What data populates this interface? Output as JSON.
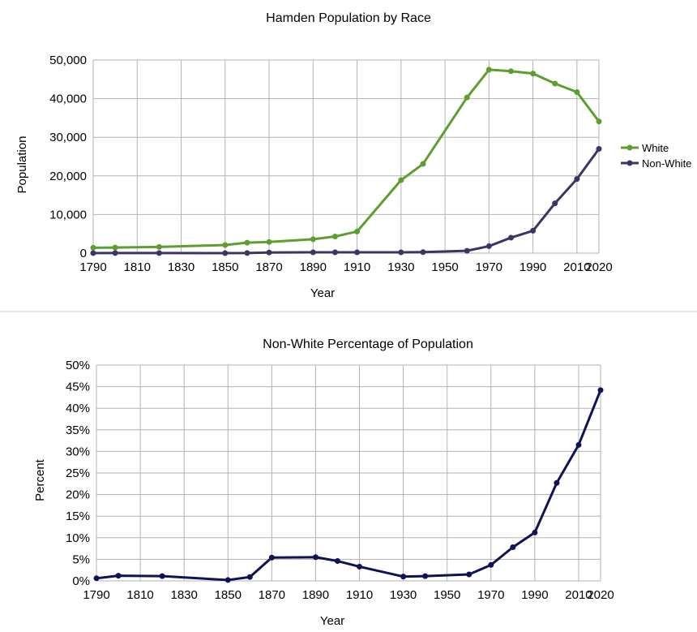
{
  "chart_data": [
    {
      "type": "line",
      "title": "Hamden Population by Race",
      "xlabel": "Year",
      "ylabel": "Population",
      "xlim": [
        1790,
        2020
      ],
      "ylim": [
        0,
        50000
      ],
      "xticks": [
        "1790",
        "1810",
        "1830",
        "1850",
        "1870",
        "1890",
        "1910",
        "1930",
        "1950",
        "1970",
        "1990",
        "2010",
        "2020"
      ],
      "xtick_values": [
        1790,
        1810,
        1830,
        1850,
        1870,
        1890,
        1910,
        1930,
        1950,
        1970,
        1990,
        2010,
        2020
      ],
      "yticks": [
        "0",
        "10,000",
        "20,000",
        "30,000",
        "40,000",
        "50,000"
      ],
      "ytick_values": [
        0,
        10000,
        20000,
        30000,
        40000,
        50000
      ],
      "grid": true,
      "legend_position": "right",
      "series": [
        {
          "name": "White",
          "color": "#5d9e2f",
          "x": [
            1790,
            1800,
            1820,
            1850,
            1860,
            1870,
            1890,
            1900,
            1910,
            1930,
            1940,
            1960,
            1970,
            1980,
            1990,
            2000,
            2010,
            2020
          ],
          "values": [
            1400,
            1450,
            1600,
            2100,
            2700,
            2900,
            3600,
            4300,
            5600,
            18900,
            23100,
            40300,
            47500,
            47100,
            46500,
            43900,
            41700,
            34100
          ]
        },
        {
          "name": "Non-White",
          "color": "#3b3565",
          "x": [
            1790,
            1800,
            1820,
            1850,
            1860,
            1870,
            1890,
            1900,
            1910,
            1930,
            1940,
            1960,
            1970,
            1980,
            1990,
            2000,
            2010,
            2020
          ],
          "values": [
            10,
            20,
            20,
            5,
            20,
            170,
            200,
            210,
            200,
            200,
            250,
            600,
            1800,
            4000,
            5800,
            12900,
            19200,
            27000
          ]
        }
      ]
    },
    {
      "type": "line",
      "title": "Non-White Percentage of Population",
      "xlabel": "Year",
      "ylabel": "Percent",
      "xlim": [
        1790,
        2020
      ],
      "ylim": [
        0,
        50
      ],
      "xticks": [
        "1790",
        "1810",
        "1830",
        "1850",
        "1870",
        "1890",
        "1910",
        "1930",
        "1950",
        "1970",
        "1990",
        "2010",
        "2020"
      ],
      "xtick_values": [
        1790,
        1810,
        1830,
        1850,
        1870,
        1890,
        1910,
        1930,
        1950,
        1970,
        1990,
        2010,
        2020
      ],
      "yticks": [
        "0%",
        "5%",
        "10%",
        "15%",
        "20%",
        "25%",
        "30%",
        "35%",
        "40%",
        "45%",
        "50%"
      ],
      "ytick_values": [
        0,
        5,
        10,
        15,
        20,
        25,
        30,
        35,
        40,
        45,
        50
      ],
      "grid": true,
      "series": [
        {
          "color": "#0f1254",
          "x": [
            1790,
            1800,
            1820,
            1850,
            1860,
            1870,
            1890,
            1900,
            1910,
            1930,
            1940,
            1960,
            1970,
            1980,
            1990,
            2000,
            2010,
            2020
          ],
          "values": [
            0.6,
            1.2,
            1.1,
            0.2,
            0.9,
            5.4,
            5.5,
            4.6,
            3.3,
            1.0,
            1.1,
            1.5,
            3.7,
            7.8,
            11.2,
            22.7,
            31.5,
            44.2
          ]
        }
      ]
    }
  ]
}
